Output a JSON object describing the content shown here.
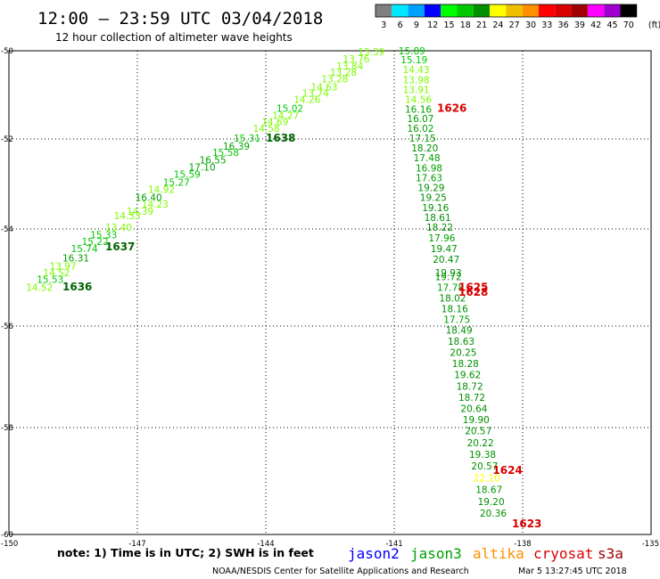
{
  "header": {
    "title": "12:00 — 23:59 UTC 03/04/2018",
    "subtitle": "12 hour collection of altimeter wave heights"
  },
  "colorbar": {
    "labels": [
      "3",
      "6",
      "9",
      "12",
      "15",
      "18",
      "21",
      "24",
      "27",
      "30",
      "33",
      "36",
      "39",
      "42",
      "45",
      "70",
      "(ft)"
    ],
    "colors": [
      "#7f7f7f",
      "#00e8ff",
      "#00a0ff",
      "#0000ff",
      "#00ff00",
      "#00c800",
      "#009000",
      "#ffff00",
      "#f0c000",
      "#ff9000",
      "#ff0000",
      "#d80000",
      "#a00000",
      "#ff00ff",
      "#a000d0",
      "#000000"
    ]
  },
  "axes": {
    "y_ticks": [
      "-50",
      "-52",
      "-54",
      "-56",
      "-58",
      "-60"
    ],
    "x_ticks": [
      "-150",
      "-147",
      "-144",
      "-141",
      "-138",
      "-135"
    ]
  },
  "footer": {
    "note": "note: 1) Time is in UTC; 2) SWH is in feet",
    "legend": [
      {
        "name": "jason2",
        "color": "#0000ff"
      },
      {
        "name": "jason3",
        "color": "#00a000"
      },
      {
        "name": "altika",
        "color": "#ff9000"
      },
      {
        "name": "cryosat",
        "color": "#d80000"
      },
      {
        "name": "s3a",
        "color": "#a00000"
      }
    ],
    "credit": "NOAA/NESDIS Center for Satellite Applications and Research",
    "timestamp": "Mar  5 13:27:45 UTC 2018"
  },
  "chart_data": {
    "type": "scatter",
    "title": "12:00 — 23:59 UTC 03/04/2018",
    "subtitle": "12 hour collection of altimeter wave heights",
    "xlabel": "",
    "ylabel": "",
    "xlim": [
      -150,
      -135
    ],
    "ylim": [
      -60.2,
      -49.8
    ],
    "grid": true,
    "legend_position": "bottom",
    "pass_labels": [
      {
        "label": "1638",
        "lon": -144.0,
        "lat": -51.98,
        "color": "#006400"
      },
      {
        "label": "1637",
        "lon": -147.75,
        "lat": -54.37,
        "color": "#006400"
      },
      {
        "label": "1636",
        "lon": -148.75,
        "lat": -55.19,
        "color": "#006400"
      },
      {
        "label": "1626",
        "lon": -140.0,
        "lat": -51.3,
        "color": "#d80000"
      },
      {
        "label": "1625",
        "lon": -139.5,
        "lat": -55.2,
        "color": "#d80000"
      },
      {
        "label": "1628",
        "lon": -139.5,
        "lat": -55.3,
        "color": "#d80000"
      },
      {
        "label": "1624",
        "lon": -138.7,
        "lat": -58.8,
        "color": "#d80000"
      },
      {
        "label": "1623",
        "lon": -138.25,
        "lat": -59.8,
        "color": "#d80000"
      }
    ],
    "series": [
      {
        "name": "jason3",
        "points": [
          {
            "lon": -149.6,
            "lat": -55.2,
            "value": 14.52,
            "color": "#7cfc00"
          },
          {
            "lon": -149.35,
            "lat": -55.04,
            "value": 15.53,
            "color": "#00c800"
          },
          {
            "lon": -149.2,
            "lat": -54.9,
            "value": 14.52,
            "color": "#7cfc00"
          },
          {
            "lon": -149.05,
            "lat": -54.76,
            "value": 13.97,
            "color": "#7cfc00"
          },
          {
            "lon": -148.75,
            "lat": -54.6,
            "value": 16.31,
            "color": "#00a000"
          },
          {
            "lon": -148.55,
            "lat": -54.4,
            "value": 15.74,
            "color": "#00c800"
          },
          {
            "lon": -148.3,
            "lat": -54.26,
            "value": 15.22,
            "color": "#00c800"
          },
          {
            "lon": -148.1,
            "lat": -54.12,
            "value": 15.33,
            "color": "#00c800"
          },
          {
            "lon": -147.75,
            "lat": -53.96,
            "value": 13.4,
            "color": "#7cfc00"
          },
          {
            "lon": -147.55,
            "lat": -53.7,
            "value": 14.33,
            "color": "#7cfc00"
          },
          {
            "lon": -147.25,
            "lat": -53.6,
            "value": 14.39,
            "color": "#7cfc00"
          },
          {
            "lon": -146.9,
            "lat": -53.45,
            "value": 14.23,
            "color": "#7cfc00"
          },
          {
            "lon": -147.05,
            "lat": -53.3,
            "value": 16.4,
            "color": "#00a000"
          },
          {
            "lon": -146.75,
            "lat": -53.12,
            "value": 14.92,
            "color": "#7cfc00"
          },
          {
            "lon": -146.4,
            "lat": -52.96,
            "value": 15.27,
            "color": "#00c800"
          },
          {
            "lon": -146.15,
            "lat": -52.78,
            "value": 15.59,
            "color": "#00c800"
          },
          {
            "lon": -145.8,
            "lat": -52.62,
            "value": 17.1,
            "color": "#00a000"
          },
          {
            "lon": -145.55,
            "lat": -52.47,
            "value": 16.55,
            "color": "#00a000"
          },
          {
            "lon": -145.25,
            "lat": -52.3,
            "value": 15.58,
            "color": "#00c800"
          },
          {
            "lon": -145.0,
            "lat": -52.16,
            "value": 16.39,
            "color": "#00a000"
          },
          {
            "lon": -144.75,
            "lat": -51.98,
            "value": 15.31,
            "color": "#00c800"
          },
          {
            "lon": -144.3,
            "lat": -51.76,
            "value": 14.58,
            "color": "#7cfc00"
          },
          {
            "lon": -144.1,
            "lat": -51.61,
            "value": 14.69,
            "color": "#7cfc00"
          },
          {
            "lon": -143.85,
            "lat": -51.46,
            "value": 14.27,
            "color": "#7cfc00"
          },
          {
            "lon": -143.75,
            "lat": -51.3,
            "value": 15.02,
            "color": "#00c800"
          },
          {
            "lon": -143.35,
            "lat": -51.1,
            "value": 14.26,
            "color": "#7cfc00"
          },
          {
            "lon": -143.15,
            "lat": -50.96,
            "value": 13.74,
            "color": "#7cfc00"
          },
          {
            "lon": -142.95,
            "lat": -50.82,
            "value": 14.63,
            "color": "#7cfc00"
          },
          {
            "lon": -142.7,
            "lat": -50.64,
            "value": 13.28,
            "color": "#7cfc00"
          },
          {
            "lon": -142.5,
            "lat": -50.48,
            "value": 13.28,
            "color": "#7cfc00"
          },
          {
            "lon": -142.35,
            "lat": -50.34,
            "value": 13.84,
            "color": "#7cfc00"
          },
          {
            "lon": -142.2,
            "lat": -50.18,
            "value": 13.76,
            "color": "#7cfc00"
          },
          {
            "lon": -141.85,
            "lat": -50.02,
            "value": 13.39,
            "color": "#7cfc00"
          }
        ]
      },
      {
        "name": "jason3",
        "points": [
          {
            "lon": -140.9,
            "lat": -50.0,
            "value": 15.89,
            "color": "#00c800"
          },
          {
            "lon": -140.85,
            "lat": -50.2,
            "value": 15.19,
            "color": "#00c800"
          },
          {
            "lon": -140.8,
            "lat": -50.42,
            "value": 14.43,
            "color": "#7cfc00"
          },
          {
            "lon": -140.8,
            "lat": -50.66,
            "value": 13.98,
            "color": "#7cfc00"
          },
          {
            "lon": -140.8,
            "lat": -50.88,
            "value": 13.91,
            "color": "#7cfc00"
          },
          {
            "lon": -140.75,
            "lat": -51.1,
            "value": 14.56,
            "color": "#7cfc00"
          },
          {
            "lon": -140.75,
            "lat": -51.32,
            "value": 16.16,
            "color": "#00a000"
          },
          {
            "lon": -140.7,
            "lat": -51.54,
            "value": 16.07,
            "color": "#00a000"
          },
          {
            "lon": -140.7,
            "lat": -51.76,
            "value": 16.02,
            "color": "#00a000"
          },
          {
            "lon": -140.65,
            "lat": -51.98,
            "value": 17.15,
            "color": "#00a000"
          },
          {
            "lon": -140.6,
            "lat": -52.2,
            "value": 18.2,
            "color": "#009000"
          },
          {
            "lon": -140.55,
            "lat": -52.42,
            "value": 17.48,
            "color": "#00a000"
          },
          {
            "lon": -140.5,
            "lat": -52.64,
            "value": 16.98,
            "color": "#00a000"
          },
          {
            "lon": -140.5,
            "lat": -52.86,
            "value": 17.63,
            "color": "#00a000"
          },
          {
            "lon": -140.45,
            "lat": -53.08,
            "value": 19.29,
            "color": "#009000"
          },
          {
            "lon": -140.4,
            "lat": -53.3,
            "value": 19.25,
            "color": "#009000"
          },
          {
            "lon": -140.35,
            "lat": -53.52,
            "value": 19.16,
            "color": "#009000"
          },
          {
            "lon": -140.3,
            "lat": -53.74,
            "value": 18.61,
            "color": "#009000"
          },
          {
            "lon": -140.25,
            "lat": -53.96,
            "value": 18.22,
            "color": "#009000"
          },
          {
            "lon": -140.2,
            "lat": -54.18,
            "value": 17.96,
            "color": "#00a000"
          },
          {
            "lon": -140.15,
            "lat": -54.4,
            "value": 19.47,
            "color": "#009000"
          },
          {
            "lon": -140.1,
            "lat": -54.62,
            "value": 20.47,
            "color": "#009000"
          },
          {
            "lon": -140.05,
            "lat": -54.9,
            "value": 19.93,
            "color": "#009000"
          },
          {
            "lon": -140.05,
            "lat": -54.98,
            "value": 19.72,
            "color": "#009000"
          },
          {
            "lon": -140.0,
            "lat": -55.2,
            "value": 17.78,
            "color": "#00a000"
          },
          {
            "lon": -139.95,
            "lat": -55.42,
            "value": 18.02,
            "color": "#009000"
          },
          {
            "lon": -139.9,
            "lat": -55.64,
            "value": 18.16,
            "color": "#009000"
          },
          {
            "lon": -139.85,
            "lat": -55.86,
            "value": 17.75,
            "color": "#00a000"
          },
          {
            "lon": -139.8,
            "lat": -56.08,
            "value": 18.49,
            "color": "#009000"
          },
          {
            "lon": -139.75,
            "lat": -56.3,
            "value": 18.63,
            "color": "#009000"
          },
          {
            "lon": -139.7,
            "lat": -56.52,
            "value": 20.25,
            "color": "#009000"
          },
          {
            "lon": -139.65,
            "lat": -56.74,
            "value": 18.28,
            "color": "#009000"
          },
          {
            "lon": -139.6,
            "lat": -56.96,
            "value": 19.62,
            "color": "#009000"
          },
          {
            "lon": -139.55,
            "lat": -57.18,
            "value": 18.72,
            "color": "#009000"
          },
          {
            "lon": -139.5,
            "lat": -57.4,
            "value": 18.72,
            "color": "#009000"
          },
          {
            "lon": -139.45,
            "lat": -57.62,
            "value": 20.64,
            "color": "#009000"
          },
          {
            "lon": -139.4,
            "lat": -57.84,
            "value": 19.9,
            "color": "#009000"
          },
          {
            "lon": -139.35,
            "lat": -58.06,
            "value": 20.57,
            "color": "#009000"
          },
          {
            "lon": -139.3,
            "lat": -58.28,
            "value": 20.22,
            "color": "#009000"
          },
          {
            "lon": -139.25,
            "lat": -58.5,
            "value": 19.38,
            "color": "#009000"
          },
          {
            "lon": -139.2,
            "lat": -58.72,
            "value": 20.57,
            "color": "#009000"
          },
          {
            "lon": -139.15,
            "lat": -58.94,
            "value": 22.1,
            "color": "#ffff00"
          },
          {
            "lon": -139.1,
            "lat": -59.16,
            "value": 18.67,
            "color": "#009000"
          },
          {
            "lon": -139.05,
            "lat": -59.38,
            "value": 19.2,
            "color": "#009000"
          },
          {
            "lon": -139.0,
            "lat": -59.6,
            "value": 20.36,
            "color": "#009000"
          }
        ]
      }
    ]
  }
}
